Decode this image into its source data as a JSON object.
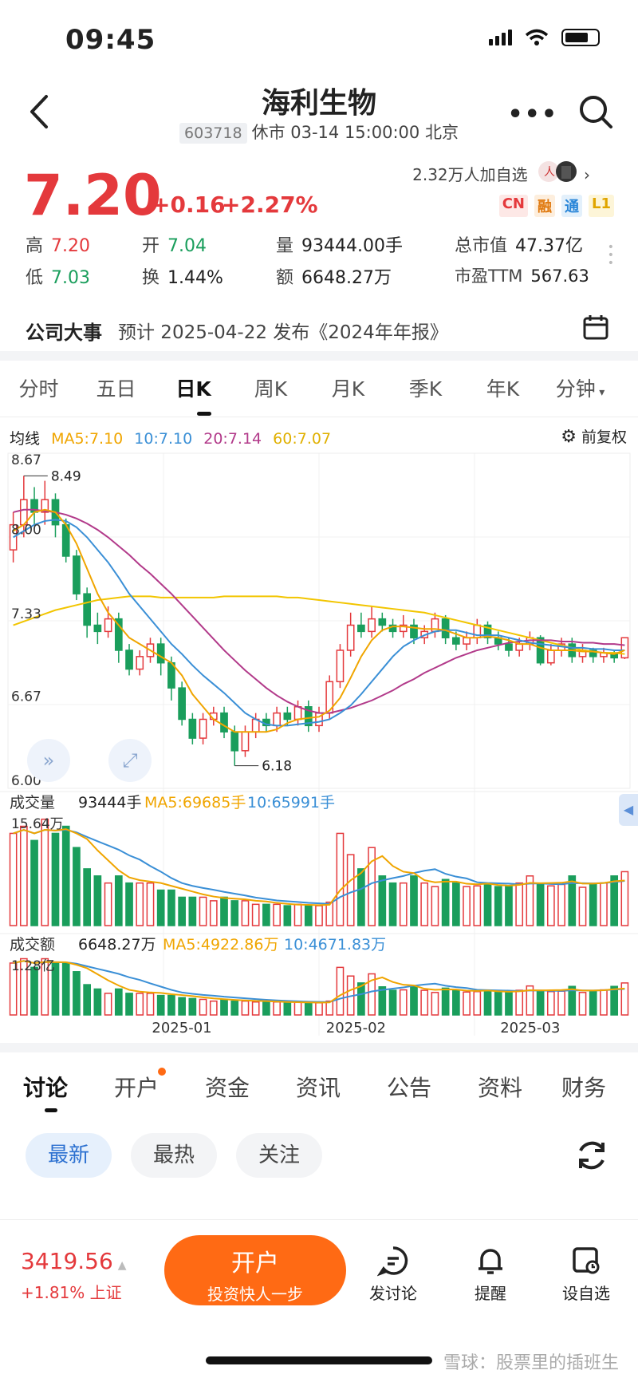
{
  "status_bar": {
    "time": "09:45"
  },
  "header": {
    "title": "海利生物",
    "code": "603718",
    "status": "休市 03-14 15:00:00 北京"
  },
  "quote": {
    "price": "7.20",
    "change": "+0.16",
    "change_pct": "+2.27%",
    "followers": "2.32万人加自选",
    "tags": [
      "CN",
      "融",
      "通",
      "L1"
    ],
    "high_label": "高",
    "high": "7.20",
    "low_label": "低",
    "low": "7.03",
    "open_label": "开",
    "open": "7.04",
    "turnover_label": "换",
    "turnover": "1.44%",
    "volume_label": "量",
    "volume": "93444.00手",
    "amount_label": "额",
    "amount": "6648.27万",
    "mcap_label": "总市值",
    "mcap": "47.37亿",
    "pe_label": "市盈TTM",
    "pe": "567.63"
  },
  "event": {
    "title": "公司大事",
    "text": "预计 2025-04-22 发布《2024年年报》"
  },
  "chart_tabs": [
    "分时",
    "五日",
    "日K",
    "周K",
    "月K",
    "季K",
    "年K",
    "分钟"
  ],
  "chart_tab_active": 2,
  "ma_legend": {
    "label": "均线",
    "ma5": "MA5:7.10",
    "ma10": "10:7.10",
    "ma20": "20:7.14",
    "ma60": "60:7.07",
    "adjust": "前复权"
  },
  "colors": {
    "up": "#e4393c",
    "down": "#1a9e5c",
    "ma5": "#f0a500",
    "ma10": "#3a8fd6",
    "ma20": "#b23a8a",
    "ma60": "#f2c500",
    "accent": "#ff6a14"
  },
  "chart_data": {
    "type": "candlestick",
    "price_axis": [
      "8.67",
      "8.00",
      "7.33",
      "6.67",
      "6.00"
    ],
    "ylim": [
      6.0,
      8.67
    ],
    "max_annotation": "8.49",
    "min_annotation": "6.18",
    "x_labels": [
      "2025-01",
      "2025-02",
      "2025-03"
    ],
    "candles": [
      [
        7.9,
        8.1,
        7.8,
        8.2
      ],
      [
        8.1,
        8.3,
        8.0,
        8.49
      ],
      [
        8.3,
        8.2,
        8.1,
        8.4
      ],
      [
        8.2,
        8.3,
        8.1,
        8.45
      ],
      [
        8.3,
        8.1,
        8.0,
        8.35
      ],
      [
        8.1,
        7.85,
        7.8,
        8.15
      ],
      [
        7.85,
        7.55,
        7.5,
        7.9
      ],
      [
        7.55,
        7.3,
        7.2,
        7.6
      ],
      [
        7.3,
        7.25,
        7.15,
        7.4
      ],
      [
        7.25,
        7.35,
        7.2,
        7.45
      ],
      [
        7.35,
        7.1,
        7.0,
        7.4
      ],
      [
        7.1,
        6.95,
        6.9,
        7.15
      ],
      [
        6.95,
        7.05,
        6.9,
        7.1
      ],
      [
        7.05,
        7.15,
        7.0,
        7.2
      ],
      [
        7.15,
        7.0,
        6.9,
        7.2
      ],
      [
        7.0,
        6.8,
        6.7,
        7.05
      ],
      [
        6.8,
        6.55,
        6.5,
        6.85
      ],
      [
        6.55,
        6.4,
        6.35,
        6.6
      ],
      [
        6.4,
        6.55,
        6.35,
        6.6
      ],
      [
        6.55,
        6.6,
        6.5,
        6.65
      ],
      [
        6.6,
        6.45,
        6.4,
        6.65
      ],
      [
        6.45,
        6.3,
        6.18,
        6.5
      ],
      [
        6.3,
        6.45,
        6.25,
        6.5
      ],
      [
        6.45,
        6.55,
        6.4,
        6.6
      ],
      [
        6.55,
        6.5,
        6.45,
        6.6
      ],
      [
        6.5,
        6.6,
        6.45,
        6.65
      ],
      [
        6.6,
        6.55,
        6.5,
        6.65
      ],
      [
        6.55,
        6.65,
        6.5,
        6.7
      ],
      [
        6.65,
        6.5,
        6.45,
        6.7
      ],
      [
        6.5,
        6.6,
        6.45,
        6.65
      ],
      [
        6.6,
        6.85,
        6.55,
        6.9
      ],
      [
        6.85,
        7.1,
        6.8,
        7.15
      ],
      [
        7.1,
        7.3,
        7.05,
        7.4
      ],
      [
        7.3,
        7.25,
        7.2,
        7.4
      ],
      [
        7.25,
        7.35,
        7.2,
        7.45
      ],
      [
        7.35,
        7.3,
        7.25,
        7.4
      ],
      [
        7.3,
        7.25,
        7.2,
        7.35
      ],
      [
        7.25,
        7.3,
        7.2,
        7.38
      ],
      [
        7.3,
        7.2,
        7.15,
        7.35
      ],
      [
        7.2,
        7.25,
        7.15,
        7.3
      ],
      [
        7.25,
        7.35,
        7.2,
        7.4
      ],
      [
        7.35,
        7.2,
        7.15,
        7.38
      ],
      [
        7.2,
        7.15,
        7.1,
        7.25
      ],
      [
        7.15,
        7.2,
        7.1,
        7.25
      ],
      [
        7.2,
        7.3,
        7.15,
        7.35
      ],
      [
        7.3,
        7.2,
        7.15,
        7.33
      ],
      [
        7.2,
        7.15,
        7.1,
        7.25
      ],
      [
        7.15,
        7.1,
        7.05,
        7.2
      ],
      [
        7.1,
        7.15,
        7.05,
        7.2
      ],
      [
        7.15,
        7.2,
        7.1,
        7.25
      ],
      [
        7.2,
        7.0,
        6.98,
        7.22
      ],
      [
        7.0,
        7.1,
        6.98,
        7.15
      ],
      [
        7.1,
        7.15,
        7.05,
        7.2
      ],
      [
        7.15,
        7.05,
        7.0,
        7.2
      ],
      [
        7.05,
        7.1,
        7.0,
        7.15
      ],
      [
        7.1,
        7.05,
        7.0,
        7.12
      ],
      [
        7.05,
        7.08,
        7.0,
        7.12
      ],
      [
        7.08,
        7.04,
        7.0,
        7.1
      ],
      [
        7.04,
        7.2,
        7.03,
        7.2
      ]
    ],
    "ma5": [
      8.05,
      8.1,
      8.2,
      8.22,
      8.2,
      8.1,
      7.95,
      7.75,
      7.55,
      7.4,
      7.3,
      7.2,
      7.15,
      7.1,
      7.05,
      7.0,
      6.9,
      6.75,
      6.65,
      6.55,
      6.5,
      6.45,
      6.45,
      6.45,
      6.45,
      6.47,
      6.52,
      6.55,
      6.56,
      6.57,
      6.62,
      6.72,
      6.88,
      7.05,
      7.18,
      7.26,
      7.29,
      7.29,
      7.28,
      7.27,
      7.27,
      7.26,
      7.23,
      7.2,
      7.2,
      7.21,
      7.2,
      7.18,
      7.15,
      7.15,
      7.12,
      7.1,
      7.1,
      7.1,
      7.09,
      7.09,
      7.08,
      7.07,
      7.1
    ],
    "ma10": [
      8.0,
      8.05,
      8.1,
      8.13,
      8.14,
      8.13,
      8.08,
      8.0,
      7.9,
      7.8,
      7.68,
      7.55,
      7.45,
      7.35,
      7.25,
      7.15,
      7.07,
      6.98,
      6.9,
      6.83,
      6.76,
      6.68,
      6.6,
      6.55,
      6.51,
      6.5,
      6.5,
      6.51,
      6.52,
      6.53,
      6.55,
      6.6,
      6.66,
      6.75,
      6.85,
      6.95,
      7.05,
      7.13,
      7.18,
      7.22,
      7.25,
      7.26,
      7.26,
      7.24,
      7.22,
      7.22,
      7.22,
      7.2,
      7.18,
      7.16,
      7.15,
      7.14,
      7.13,
      7.12,
      7.12,
      7.11,
      7.11,
      7.1,
      7.1
    ],
    "ma20": [
      8.2,
      8.22,
      8.22,
      8.21,
      8.2,
      8.18,
      8.15,
      8.11,
      8.06,
      8.0,
      7.93,
      7.86,
      7.78,
      7.71,
      7.63,
      7.55,
      7.46,
      7.37,
      7.28,
      7.19,
      7.1,
      7.02,
      6.94,
      6.87,
      6.8,
      6.74,
      6.69,
      6.65,
      6.62,
      6.6,
      6.6,
      6.62,
      6.64,
      6.67,
      6.7,
      6.74,
      6.78,
      6.83,
      6.87,
      6.92,
      6.96,
      7.0,
      7.04,
      7.07,
      7.1,
      7.12,
      7.14,
      7.16,
      7.17,
      7.18,
      7.18,
      7.18,
      7.17,
      7.17,
      7.16,
      7.16,
      7.15,
      7.15,
      7.14
    ],
    "ma60": [
      7.3,
      7.33,
      7.36,
      7.39,
      7.42,
      7.44,
      7.46,
      7.48,
      7.5,
      7.51,
      7.52,
      7.53,
      7.53,
      7.53,
      7.52,
      7.52,
      7.52,
      7.52,
      7.52,
      7.52,
      7.53,
      7.53,
      7.53,
      7.53,
      7.53,
      7.53,
      7.52,
      7.52,
      7.51,
      7.5,
      7.49,
      7.48,
      7.47,
      7.46,
      7.45,
      7.44,
      7.43,
      7.42,
      7.41,
      7.4,
      7.38,
      7.36,
      7.34,
      7.32,
      7.3,
      7.28,
      7.26,
      7.24,
      7.22,
      7.2,
      7.18,
      7.16,
      7.14,
      7.12,
      7.1,
      7.09,
      7.08,
      7.08,
      7.07
    ],
    "volume": {
      "label": "成交量",
      "value": "93444手",
      "ma5": "MA5:69685手",
      "ma10": "10:65991手",
      "axis_max": "15.64万",
      "bars": [
        13,
        14,
        12,
        15,
        13,
        14,
        11,
        8,
        7,
        6,
        7,
        6,
        6,
        6,
        5,
        5,
        4,
        4,
        4,
        3.5,
        4,
        3.5,
        3.5,
        3,
        3,
        3,
        2.8,
        3,
        2.8,
        2.8,
        3.3,
        13,
        10,
        8,
        11,
        7,
        6,
        6,
        7,
        6,
        5.5,
        6.5,
        6,
        5.5,
        5.6,
        6,
        5.5,
        5.6,
        6,
        7,
        5.8,
        5.6,
        5.8,
        7,
        5.4,
        5.8,
        6,
        7,
        7.6
      ]
    },
    "amount": {
      "label": "成交额",
      "value": "6648.27万",
      "ma5": "MA5:4922.86万",
      "ma10": "10:4671.83万",
      "axis_max": "1.28亿",
      "bars": [
        12,
        13,
        11,
        13,
        12,
        12,
        10,
        7,
        6,
        5,
        6,
        5,
        5,
        5,
        4.5,
        4.5,
        4,
        3.8,
        3.6,
        3.2,
        3.6,
        3.2,
        3.2,
        3,
        3,
        3,
        2.8,
        2.9,
        2.8,
        2.8,
        3.2,
        11,
        9,
        7.4,
        9.5,
        6.5,
        5.7,
        5.8,
        6.6,
        5.7,
        5.2,
        6.2,
        5.7,
        5.3,
        5.4,
        5.7,
        5.2,
        5.3,
        5.7,
        6.7,
        5.5,
        5.4,
        5.5,
        6.6,
        5.2,
        5.5,
        5.8,
        6.6,
        7.4
      ]
    }
  },
  "bottom_tabs": [
    "讨论",
    "开户",
    "资金",
    "资讯",
    "公告",
    "资料",
    "财务"
  ],
  "filters": [
    "最新",
    "最热",
    "关注"
  ],
  "footer": {
    "index_value": "3419.56",
    "index_change": "+1.81%",
    "index_name": "上证",
    "open_label": "开户",
    "open_sub": "投资快人一步",
    "post_label": "发讨论",
    "remind_label": "提醒",
    "alert_label": "设自选"
  },
  "watermark": "雪球：股票里的插班生"
}
